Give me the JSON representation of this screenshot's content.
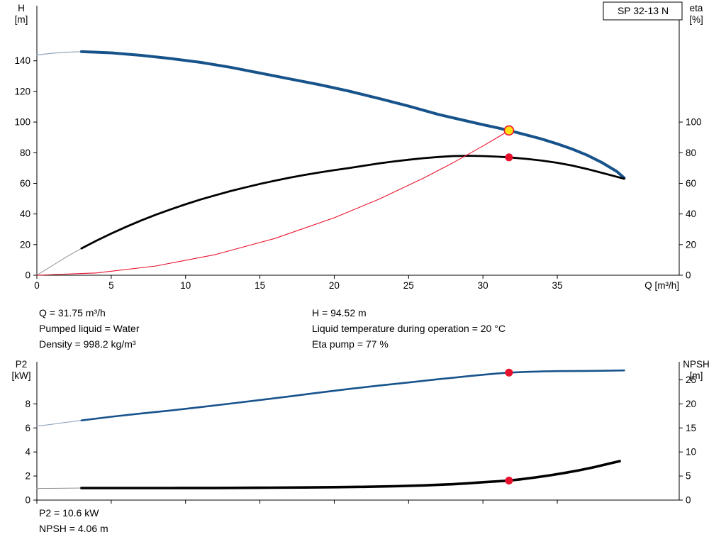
{
  "info": {
    "left": [
      "Q = 31.75 m³/h",
      "Pumped liquid = Water",
      "Density = 998.2 kg/m³"
    ],
    "right": [
      "H = 94.52 m",
      "Liquid temperature during operation = 20 °C",
      "Eta pump = 77 %"
    ],
    "bottom": [
      "P2 = 10.6 kW",
      "NPSH = 4.06 m"
    ]
  },
  "colors": {
    "curve_blue": "#17538b",
    "curve_black": "#000000",
    "system_red": "#e8112d",
    "duty_yellow": "#ffe014"
  },
  "chart_data": [
    {
      "type": "line",
      "name": "head-efficiency-chart",
      "title_box": "SP 32-13 N",
      "plot": {
        "x0": 52,
        "x1": 958,
        "y0": 388,
        "y1": 8
      },
      "x_axis": {
        "label": "Q [m³/h]",
        "min": 0,
        "max": 43.2,
        "ticks": [
          0,
          5,
          10,
          15,
          20,
          25,
          30,
          35
        ],
        "show_tick_labels": true
      },
      "y_left": {
        "label_lines": [
          "H",
          "[m]"
        ],
        "min": 0,
        "max": 176,
        "ticks": [
          0,
          20,
          40,
          60,
          80,
          100,
          120,
          140
        ]
      },
      "y_right": {
        "label_lines": [
          "eta",
          "[%]"
        ],
        "min": 0,
        "max": 176,
        "ticks": [
          0,
          20,
          40,
          60,
          80,
          100
        ]
      },
      "series": [
        {
          "name": "head-curve-lead-in",
          "axis": "left",
          "color": "#8fa6bd",
          "width": 1.2,
          "points": [
            [
              0,
              143.8
            ],
            [
              1,
              144.9
            ],
            [
              2,
              145.6
            ],
            [
              3,
              146
            ]
          ]
        },
        {
          "name": "head-curve",
          "axis": "left",
          "color": "#17538b",
          "width": 4,
          "points": [
            [
              3,
              146
            ],
            [
              5,
              145.2
            ],
            [
              7,
              143.6
            ],
            [
              9,
              141.5
            ],
            [
              11,
              139
            ],
            [
              13,
              135.8
            ],
            [
              15,
              132
            ],
            [
              17,
              128.2
            ],
            [
              19,
              124.4
            ],
            [
              21,
              120.2
            ],
            [
              23,
              115.4
            ],
            [
              25,
              110.4
            ],
            [
              27,
              105
            ],
            [
              29,
              100.5
            ],
            [
              30,
              98.3
            ],
            [
              31,
              96.2
            ],
            [
              31.75,
              94.52
            ],
            [
              33,
              91.4
            ],
            [
              34,
              88.8
            ],
            [
              35,
              85.8
            ],
            [
              36,
              82.4
            ],
            [
              37,
              78.4
            ],
            [
              38,
              73.6
            ],
            [
              39,
              67.8
            ],
            [
              39.5,
              63.5
            ]
          ]
        },
        {
          "name": "efficiency-curve-lead-in",
          "axis": "right",
          "color": "#909090",
          "width": 1,
          "points": [
            [
              0,
              0
            ],
            [
              1,
              6
            ],
            [
              2,
              12
            ],
            [
              3,
              17.5
            ]
          ]
        },
        {
          "name": "efficiency-curve",
          "axis": "right",
          "color": "#000000",
          "width": 2.8,
          "points": [
            [
              3,
              17.5
            ],
            [
              4,
              22.5
            ],
            [
              5,
              27.2
            ],
            [
              6,
              31.6
            ],
            [
              7,
              35.7
            ],
            [
              8,
              39.5
            ],
            [
              9,
              43
            ],
            [
              10,
              46.3
            ],
            [
              11,
              49.4
            ],
            [
              12,
              52.2
            ],
            [
              13,
              54.9
            ],
            [
              14,
              57.3
            ],
            [
              15,
              59.6
            ],
            [
              16,
              61.7
            ],
            [
              17,
              63.7
            ],
            [
              18,
              65.5
            ],
            [
              19,
              67.1
            ],
            [
              20,
              68.6
            ],
            [
              21,
              70
            ],
            [
              22,
              71.5
            ],
            [
              23,
              73
            ],
            [
              24,
              74.3
            ],
            [
              25,
              75.4
            ],
            [
              26,
              76.4
            ],
            [
              27,
              77.2
            ],
            [
              28,
              77.8
            ],
            [
              29,
              78
            ],
            [
              30,
              77.8
            ],
            [
              31,
              77.4
            ],
            [
              31.75,
              77
            ],
            [
              33,
              75.9
            ],
            [
              34,
              74.8
            ],
            [
              35,
              73.4
            ],
            [
              36,
              71.6
            ],
            [
              37,
              69.4
            ],
            [
              38,
              66.9
            ],
            [
              39,
              64.3
            ],
            [
              39.5,
              63
            ]
          ]
        },
        {
          "name": "system-curve",
          "axis": "left",
          "color": "#e8112d",
          "width": 1.1,
          "points": [
            [
              0,
              0
            ],
            [
              4,
              1.5
            ],
            [
              8,
              6
            ],
            [
              12,
              13.5
            ],
            [
              16,
              24
            ],
            [
              20,
              37.5
            ],
            [
              23,
              49.6
            ],
            [
              26,
              63.4
            ],
            [
              28,
              73.5
            ],
            [
              30,
              84.4
            ],
            [
              31,
              90.1
            ],
            [
              31.75,
              94.52
            ]
          ]
        }
      ],
      "markers": [
        {
          "name": "duty-point-head",
          "axis": "left",
          "x": 31.75,
          "y": 94.52,
          "r": 6.5,
          "fill": "#ffe014",
          "stroke": "#e8112d",
          "sw": 1.6
        },
        {
          "name": "duty-point-efficiency",
          "axis": "right",
          "x": 31.75,
          "y": 77,
          "r": 5.5,
          "fill": "#e8112d",
          "stroke": "none",
          "sw": 0
        }
      ]
    },
    {
      "type": "line",
      "name": "power-npsh-chart",
      "title_box": "",
      "plot": {
        "x0": 52,
        "x1": 958,
        "y0": 705,
        "y1": 510
      },
      "x_axis": {
        "label": "",
        "min": 0,
        "max": 43.2,
        "ticks": [
          0,
          5,
          10,
          15,
          20,
          25,
          30,
          35
        ],
        "show_tick_labels": false
      },
      "y_left": {
        "label_lines": [
          "P2",
          "[kW]"
        ],
        "min": 0,
        "max": 11.5,
        "ticks": [
          0,
          2,
          4,
          6,
          8
        ]
      },
      "y_right": {
        "label_lines": [
          "NPSH",
          "[m]"
        ],
        "min": 0,
        "max": 28.75,
        "ticks": [
          0,
          5,
          10,
          15,
          20,
          25
        ]
      },
      "series": [
        {
          "name": "power-curve-lead-in",
          "axis": "left",
          "color": "#8fa6bd",
          "width": 1.2,
          "points": [
            [
              0,
              6.15
            ],
            [
              1,
              6.3
            ],
            [
              2,
              6.47
            ],
            [
              3,
              6.62
            ]
          ]
        },
        {
          "name": "power-curve",
          "axis": "left",
          "color": "#17538b",
          "width": 2.6,
          "points": [
            [
              3,
              6.62
            ],
            [
              5,
              6.93
            ],
            [
              7,
              7.2
            ],
            [
              9,
              7.45
            ],
            [
              11,
              7.73
            ],
            [
              13,
              8.02
            ],
            [
              15,
              8.32
            ],
            [
              17,
              8.62
            ],
            [
              19,
              8.94
            ],
            [
              21,
              9.24
            ],
            [
              23,
              9.52
            ],
            [
              25,
              9.78
            ],
            [
              27,
              10.05
            ],
            [
              29,
              10.3
            ],
            [
              30,
              10.42
            ],
            [
              31,
              10.53
            ],
            [
              31.75,
              10.6
            ],
            [
              33,
              10.66
            ],
            [
              34,
              10.7
            ],
            [
              35,
              10.72
            ],
            [
              36,
              10.73
            ],
            [
              37,
              10.74
            ],
            [
              38,
              10.75
            ],
            [
              39.5,
              10.78
            ]
          ]
        },
        {
          "name": "npsh-curve-lead-in",
          "axis": "right",
          "color": "#909090",
          "width": 1,
          "points": [
            [
              0,
              2.42
            ],
            [
              1.5,
              2.45
            ],
            [
              3,
              2.5
            ]
          ]
        },
        {
          "name": "npsh-curve",
          "axis": "right",
          "color": "#000000",
          "width": 3.6,
          "points": [
            [
              3,
              2.5
            ],
            [
              6,
              2.5
            ],
            [
              9,
              2.5
            ],
            [
              12,
              2.52
            ],
            [
              15,
              2.56
            ],
            [
              18,
              2.62
            ],
            [
              20,
              2.68
            ],
            [
              22,
              2.76
            ],
            [
              24,
              2.88
            ],
            [
              26,
              3.05
            ],
            [
              28,
              3.3
            ],
            [
              29,
              3.5
            ],
            [
              30,
              3.72
            ],
            [
              31,
              3.9
            ],
            [
              31.75,
              4.06
            ],
            [
              32.5,
              4.3
            ],
            [
              33.5,
              4.7
            ],
            [
              34.5,
              5.15
            ],
            [
              35.5,
              5.65
            ],
            [
              36.5,
              6.2
            ],
            [
              37.5,
              6.85
            ],
            [
              38.5,
              7.6
            ],
            [
              39.2,
              8.1
            ]
          ]
        }
      ],
      "markers": [
        {
          "name": "duty-point-power",
          "axis": "left",
          "x": 31.75,
          "y": 10.6,
          "r": 5.5,
          "fill": "#e8112d",
          "stroke": "none",
          "sw": 0
        },
        {
          "name": "duty-point-npsh",
          "axis": "right",
          "x": 31.75,
          "y": 4.06,
          "r": 5.5,
          "fill": "#e8112d",
          "stroke": "none",
          "sw": 0
        }
      ]
    }
  ]
}
